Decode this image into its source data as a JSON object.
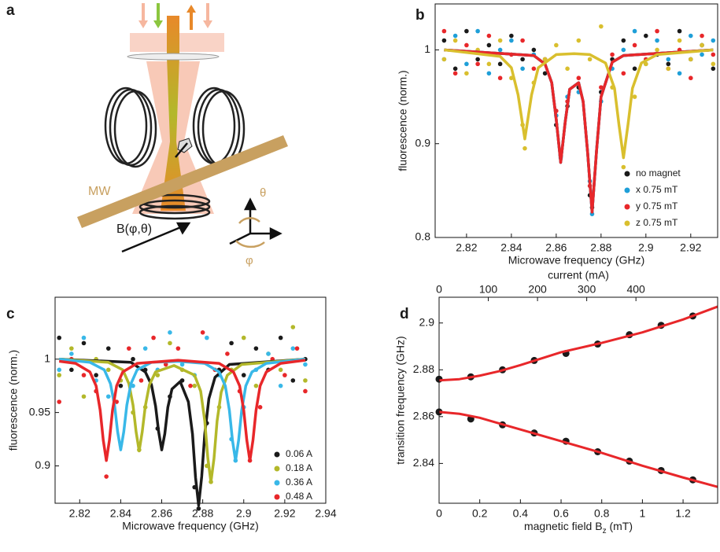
{
  "diagram": {
    "label": "a",
    "texts": [
      "MW",
      "B(φ,θ)",
      "θ",
      "φ"
    ]
  },
  "chart_data": [
    {
      "type": "scatter",
      "panel": "b",
      "xlabel": "Microwave frequency (GHz)",
      "ylabel": "fluorescence (norm.)",
      "xlim": [
        2.806,
        2.932
      ],
      "ylim": [
        0.8,
        1.049
      ],
      "xticks": [
        2.82,
        2.84,
        2.86,
        2.88,
        2.9,
        2.92
      ],
      "yticks": [
        0.8,
        0.9,
        1
      ],
      "legend": "lower right",
      "series": [
        {
          "name": "no magnet",
          "color": "#1a1a1a",
          "x": [
            2.81,
            2.815,
            2.82,
            2.825,
            2.83,
            2.835,
            2.84,
            2.845,
            2.85,
            2.855,
            2.86,
            2.862,
            2.865,
            2.87,
            2.875,
            2.876,
            2.88,
            2.885,
            2.89,
            2.895,
            2.9,
            2.905,
            2.91,
            2.915,
            2.92,
            2.925,
            2.93
          ],
          "values": [
            1.01,
            0.98,
            1.02,
            0.99,
            1.005,
            0.985,
            1.015,
            0.99,
            1.0,
            0.975,
            0.92,
            0.887,
            0.94,
            0.96,
            0.845,
            0.832,
            0.955,
            0.99,
            1.01,
            0.98,
            1.015,
            0.995,
            0.985,
            1.02,
            0.99,
            1.005,
            0.98
          ],
          "fit_x": [
            2.81,
            2.85,
            2.855,
            2.858,
            2.86,
            2.862,
            2.864,
            2.866,
            2.87,
            2.872,
            2.874,
            2.876,
            2.878,
            2.88,
            2.885,
            2.89,
            2.93
          ],
          "fit": [
            1.0,
            0.994,
            0.985,
            0.965,
            0.926,
            0.88,
            0.923,
            0.958,
            0.965,
            0.945,
            0.891,
            0.827,
            0.893,
            0.95,
            0.987,
            0.994,
            1.0
          ]
        },
        {
          "name": "x 0.75 mT",
          "color": "#1f9fd8",
          "x": [
            2.81,
            2.815,
            2.82,
            2.825,
            2.83,
            2.835,
            2.84,
            2.845,
            2.85,
            2.855,
            2.86,
            2.862,
            2.865,
            2.87,
            2.875,
            2.876,
            2.88,
            2.885,
            2.89,
            2.895,
            2.9,
            2.905,
            2.91,
            2.915,
            2.92,
            2.925,
            2.93
          ],
          "values": [
            0.99,
            1.015,
            0.985,
            1.02,
            0.975,
            1.0,
            1.01,
            0.98,
            0.995,
            0.99,
            0.93,
            0.885,
            0.95,
            0.955,
            0.86,
            0.825,
            0.945,
            0.98,
            1.0,
            1.02,
            0.985,
            1.01,
            0.99,
            0.975,
            1.015,
            0.995,
            1.01
          ],
          "fit_x": [
            2.81,
            2.85,
            2.855,
            2.858,
            2.86,
            2.862,
            2.864,
            2.866,
            2.87,
            2.872,
            2.874,
            2.876,
            2.878,
            2.88,
            2.885,
            2.89,
            2.93
          ],
          "fit": [
            1.0,
            0.994,
            0.985,
            0.965,
            0.926,
            0.88,
            0.923,
            0.958,
            0.965,
            0.945,
            0.891,
            0.827,
            0.893,
            0.95,
            0.987,
            0.994,
            1.0
          ]
        },
        {
          "name": "y 0.75 mT",
          "color": "#e8272a",
          "x": [
            2.81,
            2.815,
            2.82,
            2.825,
            2.83,
            2.835,
            2.84,
            2.845,
            2.85,
            2.855,
            2.86,
            2.862,
            2.865,
            2.87,
            2.875,
            2.876,
            2.88,
            2.885,
            2.89,
            2.895,
            2.9,
            2.905,
            2.91,
            2.915,
            2.92,
            2.925,
            2.93
          ],
          "values": [
            1.02,
            0.975,
            1.005,
            0.985,
            1.015,
            0.97,
            0.995,
            1.01,
            0.98,
            0.99,
            0.935,
            0.89,
            0.945,
            0.97,
            0.855,
            0.84,
            0.96,
            0.995,
            0.975,
            1.005,
            0.99,
            1.02,
            0.98,
            1.0,
            0.97,
            1.015,
            0.995
          ],
          "fit_x": [
            2.81,
            2.85,
            2.855,
            2.858,
            2.86,
            2.862,
            2.864,
            2.866,
            2.87,
            2.872,
            2.874,
            2.876,
            2.878,
            2.88,
            2.885,
            2.89,
            2.93
          ],
          "fit": [
            1.0,
            0.994,
            0.985,
            0.965,
            0.926,
            0.88,
            0.923,
            0.958,
            0.965,
            0.945,
            0.891,
            0.827,
            0.893,
            0.95,
            0.987,
            0.994,
            1.0
          ]
        },
        {
          "name": "z 0.75 mT",
          "color": "#d9bf2e",
          "x": [
            2.81,
            2.815,
            2.82,
            2.825,
            2.83,
            2.835,
            2.84,
            2.845,
            2.846,
            2.85,
            2.855,
            2.86,
            2.865,
            2.87,
            2.875,
            2.88,
            2.885,
            2.89,
            2.895,
            2.9,
            2.905,
            2.91,
            2.915,
            2.92,
            2.925,
            2.93
          ],
          "values": [
            0.99,
            1.01,
            0.975,
            1.0,
            0.985,
            1.01,
            0.97,
            0.92,
            0.895,
            0.965,
            0.99,
            1.005,
            0.98,
            1.01,
            0.99,
            1.025,
            0.96,
            0.875,
            0.95,
            0.985,
            1.0,
            0.98,
            1.01,
            0.99,
            1.005,
            0.985
          ],
          "fit_x": [
            2.81,
            2.835,
            2.84,
            2.843,
            2.846,
            2.849,
            2.852,
            2.86,
            2.868,
            2.875,
            2.882,
            2.886,
            2.888,
            2.89,
            2.892,
            2.894,
            2.898,
            2.905,
            2.93
          ],
          "fit": [
            1.0,
            0.993,
            0.981,
            0.952,
            0.905,
            0.952,
            0.981,
            0.995,
            0.996,
            0.995,
            0.986,
            0.959,
            0.92,
            0.885,
            0.92,
            0.959,
            0.986,
            0.995,
            1.0
          ]
        }
      ]
    },
    {
      "type": "scatter",
      "panel": "c",
      "xlabel": "Microwave frequency (GHz)",
      "ylabel": "fluorescence (norm.)",
      "xlim": [
        2.808,
        2.94
      ],
      "ylim": [
        0.865,
        1.058
      ],
      "xticks": [
        2.82,
        2.84,
        2.86,
        2.88,
        2.9,
        2.92,
        2.94
      ],
      "yticks": [
        0.9,
        0.95,
        1
      ],
      "legend": "lower right",
      "series": [
        {
          "name": "0.06 A",
          "color": "#1a1a1a",
          "x": [
            2.81,
            2.816,
            2.822,
            2.828,
            2.834,
            2.84,
            2.846,
            2.852,
            2.858,
            2.86,
            2.864,
            2.87,
            2.876,
            2.878,
            2.882,
            2.888,
            2.894,
            2.9,
            2.906,
            2.912,
            2.918,
            2.924,
            2.93
          ],
          "values": [
            1.02,
            0.99,
            1.015,
            0.985,
            1.01,
            0.975,
            1.0,
            0.99,
            0.935,
            0.92,
            0.965,
            0.98,
            0.88,
            0.86,
            0.94,
            0.99,
            1.015,
            0.985,
            1.01,
            0.99,
            1.02,
            0.98,
            1.0
          ],
          "fit_x": [
            2.81,
            2.845,
            2.852,
            2.855,
            2.857,
            2.8585,
            2.86,
            2.8615,
            2.863,
            2.865,
            2.869,
            2.873,
            2.875,
            2.8765,
            2.878,
            2.8795,
            2.881,
            2.883,
            2.886,
            2.893,
            2.93
          ],
          "fit": [
            1.0,
            0.997,
            0.988,
            0.976,
            0.956,
            0.932,
            0.915,
            0.93,
            0.955,
            0.972,
            0.979,
            0.96,
            0.93,
            0.889,
            0.863,
            0.89,
            0.93,
            0.963,
            0.983,
            0.995,
            1.0
          ]
        },
        {
          "name": "0.18 A",
          "color": "#b3b82a",
          "x": [
            2.81,
            2.816,
            2.822,
            2.828,
            2.834,
            2.84,
            2.846,
            2.849,
            2.852,
            2.858,
            2.864,
            2.87,
            2.876,
            2.882,
            2.884,
            2.888,
            2.894,
            2.9,
            2.906,
            2.912,
            2.918,
            2.924,
            2.93
          ],
          "values": [
            0.985,
            1.01,
            0.965,
            1.0,
            0.99,
            0.98,
            0.95,
            0.915,
            0.955,
            0.985,
            1.015,
            0.99,
            0.975,
            0.9,
            0.885,
            0.955,
            0.99,
            1.02,
            0.975,
            1.005,
            0.99,
            1.03,
            0.98
          ],
          "fit_x": [
            2.81,
            2.834,
            2.841,
            2.844,
            2.846,
            2.8475,
            2.849,
            2.8505,
            2.852,
            2.854,
            2.857,
            2.866,
            2.876,
            2.879,
            2.881,
            2.8825,
            2.884,
            2.8855,
            2.887,
            2.889,
            2.892,
            2.899,
            2.93
          ],
          "fit": [
            1.0,
            0.997,
            0.99,
            0.977,
            0.957,
            0.932,
            0.914,
            0.932,
            0.956,
            0.976,
            0.988,
            0.994,
            0.985,
            0.97,
            0.942,
            0.907,
            0.885,
            0.907,
            0.942,
            0.969,
            0.985,
            0.995,
            1.0
          ]
        },
        {
          "name": "0.36 A",
          "color": "#39b8e8",
          "x": [
            2.81,
            2.816,
            2.822,
            2.828,
            2.834,
            2.84,
            2.846,
            2.852,
            2.858,
            2.864,
            2.87,
            2.876,
            2.882,
            2.888,
            2.894,
            2.896,
            2.9,
            2.906,
            2.912,
            2.918,
            2.924,
            2.93
          ],
          "values": [
            0.99,
            1.005,
            1.02,
            0.98,
            0.965,
            0.92,
            0.975,
            1.01,
            0.99,
            1.025,
            0.995,
            0.985,
            1.02,
            0.985,
            0.925,
            0.905,
            0.955,
            0.99,
            1.005,
            0.975,
            1.01,
            0.995
          ],
          "fit_x": [
            2.81,
            2.825,
            2.832,
            2.835,
            2.837,
            2.8385,
            2.84,
            2.8415,
            2.843,
            2.845,
            2.848,
            2.855,
            2.868,
            2.881,
            2.888,
            2.891,
            2.893,
            2.8945,
            2.896,
            2.8975,
            2.899,
            2.901,
            2.904,
            2.911,
            2.93
          ],
          "fit": [
            1.0,
            0.997,
            0.99,
            0.977,
            0.957,
            0.932,
            0.915,
            0.932,
            0.957,
            0.977,
            0.99,
            0.997,
            0.998,
            0.996,
            0.988,
            0.975,
            0.952,
            0.924,
            0.905,
            0.924,
            0.952,
            0.975,
            0.988,
            0.996,
            1.0
          ]
        },
        {
          "name": "0.48 A",
          "color": "#e8272a",
          "x": [
            2.81,
            2.816,
            2.822,
            2.828,
            2.833,
            2.838,
            2.844,
            2.85,
            2.856,
            2.862,
            2.868,
            2.874,
            2.88,
            2.886,
            2.892,
            2.898,
            2.903,
            2.908,
            2.914,
            2.92,
            2.926,
            2.93
          ],
          "values": [
            0.96,
            1.0,
            0.985,
            0.97,
            0.89,
            0.96,
            1.01,
            0.98,
            1.02,
            0.995,
            1.01,
            0.975,
            1.025,
            0.99,
            1.005,
            0.97,
            0.905,
            0.955,
            1.0,
            0.985,
            1.01,
            0.97
          ],
          "fit_x": [
            2.81,
            2.818,
            2.825,
            2.828,
            2.83,
            2.8315,
            2.833,
            2.8345,
            2.836,
            2.838,
            2.841,
            2.848,
            2.868,
            2.888,
            2.895,
            2.898,
            2.9,
            2.9015,
            2.903,
            2.9045,
            2.906,
            2.908,
            2.911,
            2.918,
            2.93
          ],
          "fit": [
            0.998,
            0.996,
            0.988,
            0.975,
            0.952,
            0.924,
            0.905,
            0.924,
            0.952,
            0.975,
            0.988,
            0.996,
            0.999,
            0.996,
            0.988,
            0.975,
            0.952,
            0.924,
            0.905,
            0.924,
            0.952,
            0.975,
            0.988,
            0.996,
            0.999
          ]
        }
      ]
    },
    {
      "type": "scatter",
      "panel": "d",
      "xlabel": [
        "magnetic field B",
        "z",
        " (mT)"
      ],
      "ylabel": "transition frequency (GHz)",
      "x2label": "current (mA)",
      "xlim": [
        0,
        1.37
      ],
      "ylim": [
        2.823,
        2.911
      ],
      "x2lim": [
        0,
        566
      ],
      "xticks": [
        0,
        0.2,
        0.4,
        0.6,
        0.8,
        1,
        1.2
      ],
      "yticks": [
        2.84,
        2.86,
        2.88,
        2.9
      ],
      "x2ticks": [
        0,
        100,
        200,
        300,
        400
      ],
      "series": [
        {
          "color": "#1a1a1a",
          "fit_color": "#e8272a",
          "x": [
            0,
            0.156,
            0.312,
            0.468,
            0.624,
            0.78,
            0.936,
            1.092,
            1.248
          ],
          "values": [
            2.876,
            2.877,
            2.88,
            2.884,
            2.887,
            2.891,
            2.895,
            2.899,
            2.903
          ],
          "fit_x": [
            0,
            0.1,
            0.2,
            0.3,
            0.4,
            0.6,
            0.8,
            1.0,
            1.2,
            1.37
          ],
          "fit": [
            2.8755,
            2.876,
            2.8775,
            2.8795,
            2.882,
            2.8875,
            2.8915,
            2.896,
            2.9015,
            2.907
          ]
        },
        {
          "color": "#1a1a1a",
          "fit_color": "#e8272a",
          "x": [
            0,
            0.156,
            0.312,
            0.468,
            0.624,
            0.78,
            0.936,
            1.092,
            1.248
          ],
          "values": [
            2.862,
            2.859,
            2.8565,
            2.853,
            2.8495,
            2.845,
            2.841,
            2.837,
            2.833
          ],
          "fit_x": [
            0,
            0.1,
            0.2,
            0.3,
            0.4,
            0.6,
            0.8,
            1.0,
            1.2,
            1.37
          ],
          "fit": [
            2.862,
            2.8612,
            2.8595,
            2.857,
            2.8545,
            2.8495,
            2.8445,
            2.839,
            2.834,
            2.83
          ]
        }
      ]
    }
  ]
}
